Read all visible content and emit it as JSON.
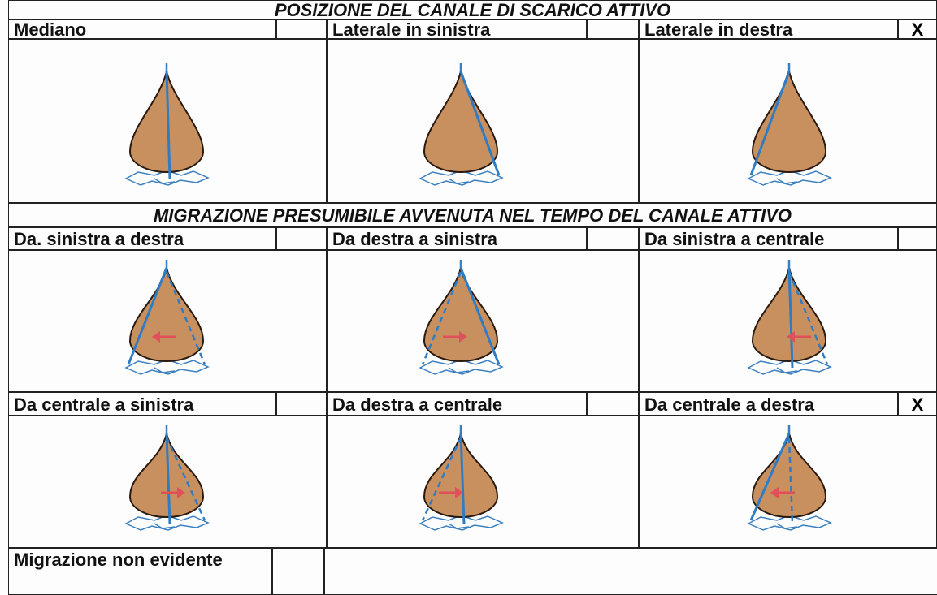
{
  "sections": [
    {
      "title": "POSIZIONE DEL CANALE DI SCARICO ATTIVO",
      "options": [
        {
          "label": "Mediano"
        },
        {
          "label": "Laterale in sinistra"
        },
        {
          "label": "Laterale in destra",
          "mark": "X"
        }
      ]
    },
    {
      "title": "MIGRAZIONE PRESUMIBILE AVVENUTA NEL TEMPO DEL CANALE ATTIVO",
      "options": [
        {
          "label": "Da. sinistra a destra"
        },
        {
          "label": "Da destra a sinistra"
        },
        {
          "label": "Da sinistra a centrale"
        },
        {
          "label": "Da centrale a sinistra"
        },
        {
          "label": "Da destra a centrale"
        },
        {
          "label": "Da centrale a destra",
          "mark": "X"
        }
      ]
    }
  ],
  "footer": {
    "label": "Migrazione non evidente"
  }
}
